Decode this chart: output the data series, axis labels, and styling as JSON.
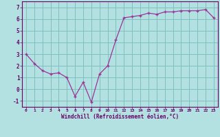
{
  "x": [
    0,
    1,
    2,
    3,
    4,
    5,
    6,
    7,
    8,
    9,
    10,
    11,
    12,
    13,
    14,
    15,
    16,
    17,
    18,
    19,
    20,
    21,
    22,
    23
  ],
  "y": [
    3.0,
    2.2,
    1.6,
    1.3,
    1.4,
    1.0,
    -0.6,
    0.6,
    -1.1,
    1.3,
    2.0,
    4.2,
    6.1,
    6.2,
    6.3,
    6.5,
    6.4,
    6.6,
    6.6,
    6.7,
    6.7,
    6.7,
    6.8,
    6.1
  ],
  "line_color": "#993399",
  "marker": "+",
  "marker_size": 4,
  "bg_color": "#b3e0e0",
  "grid_color": "#80c0c0",
  "xlabel": "Windchill (Refroidissement éolien,°C)",
  "tick_color": "#660066",
  "xlim": [
    -0.5,
    23.5
  ],
  "ylim": [
    -1.5,
    7.5
  ],
  "yticks": [
    -1,
    0,
    1,
    2,
    3,
    4,
    5,
    6,
    7
  ],
  "xticks": [
    0,
    1,
    2,
    3,
    4,
    5,
    6,
    7,
    8,
    9,
    10,
    11,
    12,
    13,
    14,
    15,
    16,
    17,
    18,
    19,
    20,
    21,
    22,
    23
  ]
}
